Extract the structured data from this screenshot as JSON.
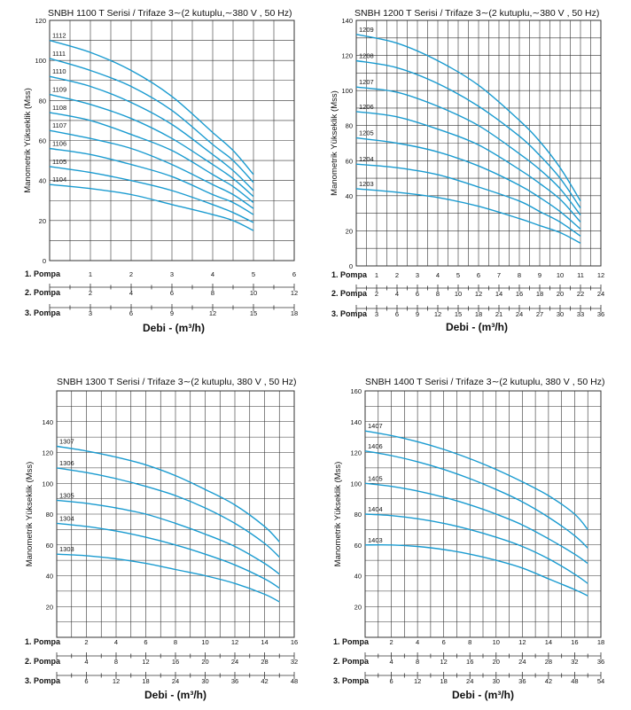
{
  "colors": {
    "curve": "#1a9bd0",
    "grid": "#333333",
    "text": "#111111"
  },
  "chart_data": [
    {
      "type": "line",
      "title": "SNBH 1100 T Serisi / Trifaze 3∼(2 kutuplu,∼380 V , 50 Hz)",
      "ylabel": "Manometrik Yükseklik (Mss)",
      "xlabel": "Debi - (m³/h)",
      "ylim": [
        0,
        120
      ],
      "y_ticks": [
        0,
        20,
        40,
        60,
        80,
        100,
        120
      ],
      "x_scales": [
        {
          "label": "1. Pompa",
          "ticks": [
            "1",
            "2",
            "3",
            "4",
            "5",
            "6"
          ]
        },
        {
          "label": "2. Pompa",
          "ticks": [
            "2",
            "4",
            "6",
            "8",
            "10",
            "12"
          ]
        },
        {
          "label": "3. Pompa",
          "ticks": [
            "3",
            "6",
            "9",
            "12",
            "15",
            "18"
          ]
        }
      ],
      "xlim": [
        0,
        6
      ],
      "grid": true,
      "series": [
        {
          "name": "1112",
          "x": [
            0,
            1,
            2,
            3,
            4,
            4.5,
            5
          ],
          "y": [
            110,
            104,
            95,
            82,
            64,
            55,
            43
          ]
        },
        {
          "name": "1111",
          "x": [
            0,
            1,
            2,
            3,
            4,
            4.5,
            5
          ],
          "y": [
            101,
            95,
            87,
            75,
            58,
            50,
            39
          ]
        },
        {
          "name": "1110",
          "x": [
            0,
            1,
            2,
            3,
            4,
            4.5,
            5
          ],
          "y": [
            92,
            87,
            79,
            68,
            53,
            45,
            35
          ]
        },
        {
          "name": "1109",
          "x": [
            0,
            1,
            2,
            3,
            4,
            4.5,
            5
          ],
          "y": [
            83,
            78,
            71,
            61,
            48,
            41,
            32
          ]
        },
        {
          "name": "1108",
          "x": [
            0,
            1,
            2,
            3,
            4,
            4.5,
            5
          ],
          "y": [
            74,
            70,
            63,
            55,
            43,
            37,
            29
          ]
        },
        {
          "name": "1107",
          "x": [
            0,
            1,
            2,
            3,
            4,
            4.5,
            5
          ],
          "y": [
            65,
            61,
            56,
            48,
            38,
            33,
            26
          ]
        },
        {
          "name": "1106",
          "x": [
            0,
            1,
            2,
            3,
            4,
            4.5,
            5
          ],
          "y": [
            56,
            53,
            48,
            42,
            33,
            29,
            23
          ]
        },
        {
          "name": "1105",
          "x": [
            0,
            1,
            2,
            3,
            4,
            4.5,
            5
          ],
          "y": [
            47,
            44,
            40,
            35,
            28,
            24,
            19
          ]
        },
        {
          "name": "1104",
          "x": [
            0,
            1,
            2,
            3,
            4,
            4.5,
            5
          ],
          "y": [
            38,
            36,
            33,
            28,
            23,
            20,
            15
          ]
        }
      ]
    },
    {
      "type": "line",
      "title": "SNBH 1200 T Serisi / Trifaze 3∼(2 kutuplu,∼380 V , 50 Hz)",
      "ylabel": "Manometrik Yükseklik (Mss)",
      "xlabel": "Debi - (m³/h)",
      "ylim": [
        0,
        140
      ],
      "y_ticks": [
        0,
        20,
        40,
        60,
        80,
        100,
        120,
        140
      ],
      "x_scales": [
        {
          "label": "1. Pompa",
          "ticks": [
            "1",
            "2",
            "3",
            "4",
            "5",
            "6",
            "7",
            "8",
            "9",
            "10",
            "11",
            "12"
          ]
        },
        {
          "label": "2. Pompa",
          "ticks": [
            "2",
            "4",
            "6",
            "8",
            "10",
            "12",
            "14",
            "16",
            "18",
            "20",
            "22",
            "24"
          ]
        },
        {
          "label": "3. Pompa",
          "ticks": [
            "3",
            "6",
            "9",
            "12",
            "15",
            "18",
            "21",
            "24",
            "27",
            "30",
            "33",
            "36"
          ]
        }
      ],
      "xlim": [
        0,
        12
      ],
      "grid": true,
      "series": [
        {
          "name": "1209",
          "x": [
            0,
            2,
            4,
            6,
            8,
            9,
            10,
            11
          ],
          "y": [
            132,
            127,
            117,
            103,
            83,
            71,
            56,
            37
          ]
        },
        {
          "name": "1208",
          "x": [
            0,
            2,
            4,
            6,
            8,
            9,
            10,
            11
          ],
          "y": [
            117,
            113,
            104,
            91,
            74,
            63,
            50,
            33
          ]
        },
        {
          "name": "1207",
          "x": [
            0,
            2,
            4,
            6,
            8,
            9,
            10,
            11
          ],
          "y": [
            102,
            99,
            91,
            80,
            64,
            55,
            44,
            29
          ]
        },
        {
          "name": "1206",
          "x": [
            0,
            2,
            4,
            6,
            8,
            9,
            10,
            11
          ],
          "y": [
            88,
            85,
            78,
            69,
            55,
            47,
            38,
            25
          ]
        },
        {
          "name": "1205",
          "x": [
            0,
            2,
            4,
            6,
            8,
            9,
            10,
            11
          ],
          "y": [
            73,
            70,
            65,
            57,
            46,
            39,
            31,
            21
          ]
        },
        {
          "name": "1204",
          "x": [
            0,
            2,
            4,
            6,
            8,
            9,
            10,
            11
          ],
          "y": [
            58,
            56,
            52,
            45,
            37,
            31,
            25,
            17
          ]
        },
        {
          "name": "1203",
          "x": [
            0,
            2,
            4,
            6,
            8,
            9,
            10,
            11
          ],
          "y": [
            44,
            42,
            39,
            34,
            27,
            23,
            19,
            13
          ]
        }
      ]
    },
    {
      "type": "line",
      "title": "SNBH 1300 T Serisi / Trifaze 3∼(2 kutuplu, 380 V , 50 Hz)",
      "ylabel": "Manometrik Yükseklik (Mss)",
      "xlabel": "Debi - (m³/h)",
      "ylim": [
        0,
        160
      ],
      "y_ticks": [
        20,
        40,
        60,
        80,
        100,
        120,
        140
      ],
      "x_scales": [
        {
          "label": "1. Pompa",
          "ticks": [
            "2",
            "4",
            "6",
            "8",
            "10",
            "12",
            "14",
            "16"
          ]
        },
        {
          "label": "2. Pompa",
          "ticks": [
            "4",
            "8",
            "12",
            "16",
            "20",
            "24",
            "28",
            "32"
          ]
        },
        {
          "label": "3. Pompa",
          "ticks": [
            "6",
            "12",
            "18",
            "24",
            "30",
            "36",
            "42",
            "48"
          ]
        }
      ],
      "xlim": [
        0,
        16
      ],
      "grid": true,
      "series": [
        {
          "name": "1307",
          "x": [
            0,
            2,
            4,
            6,
            8,
            10,
            12,
            14,
            15
          ],
          "y": [
            124,
            121,
            117,
            112,
            105,
            96,
            86,
            72,
            62
          ]
        },
        {
          "name": "1306",
          "x": [
            0,
            2,
            4,
            6,
            8,
            10,
            12,
            14,
            15
          ],
          "y": [
            110,
            107,
            103,
            98,
            92,
            84,
            74,
            61,
            52
          ]
        },
        {
          "name": "1305",
          "x": [
            0,
            2,
            4,
            6,
            8,
            10,
            12,
            14,
            15
          ],
          "y": [
            89,
            87,
            84,
            80,
            74,
            67,
            59,
            48,
            41
          ]
        },
        {
          "name": "1304",
          "x": [
            0,
            2,
            4,
            6,
            8,
            10,
            12,
            14,
            15
          ],
          "y": [
            74,
            72,
            69,
            65,
            60,
            54,
            47,
            38,
            32
          ]
        },
        {
          "name": "1303",
          "x": [
            0,
            2,
            4,
            6,
            8,
            10,
            12,
            14,
            15
          ],
          "y": [
            54,
            53,
            51,
            48,
            44,
            40,
            35,
            28,
            23
          ]
        }
      ]
    },
    {
      "type": "line",
      "title": "SNBH 1400 T Serisi / Trifaze 3∼(2 kutuplu, 380 V , 50 Hz)",
      "ylabel": "Manometrik Yükseklik (Mss)",
      "xlabel": "Debi - (m³/h)",
      "ylim": [
        0,
        160
      ],
      "y_ticks": [
        20,
        40,
        60,
        80,
        100,
        120,
        140,
        160
      ],
      "x_scales": [
        {
          "label": "1. Pompa",
          "ticks": [
            "2",
            "4",
            "6",
            "8",
            "10",
            "12",
            "14",
            "16",
            "18"
          ]
        },
        {
          "label": "2. Pompa",
          "ticks": [
            "4",
            "8",
            "12",
            "16",
            "20",
            "24",
            "28",
            "32",
            "36"
          ]
        },
        {
          "label": "3. Pompa",
          "ticks": [
            "6",
            "12",
            "18",
            "24",
            "30",
            "36",
            "42",
            "48",
            "54"
          ]
        }
      ],
      "xlim": [
        0,
        18
      ],
      "grid": true,
      "series": [
        {
          "name": "1407",
          "x": [
            0,
            2,
            4,
            6,
            8,
            10,
            12,
            14,
            16,
            17
          ],
          "y": [
            134,
            131,
            127,
            122,
            116,
            109,
            101,
            92,
            80,
            70
          ]
        },
        {
          "name": "1406",
          "x": [
            0,
            2,
            4,
            6,
            8,
            10,
            12,
            14,
            16,
            17
          ],
          "y": [
            121,
            118,
            114,
            109,
            103,
            96,
            88,
            78,
            66,
            58
          ]
        },
        {
          "name": "1405",
          "x": [
            0,
            2,
            4,
            6,
            8,
            10,
            12,
            14,
            16,
            17
          ],
          "y": [
            100,
            98,
            95,
            91,
            86,
            80,
            73,
            64,
            54,
            48
          ]
        },
        {
          "name": "1404",
          "x": [
            0,
            2,
            4,
            6,
            8,
            10,
            12,
            14,
            16,
            17
          ],
          "y": [
            80,
            79,
            77,
            74,
            70,
            65,
            59,
            51,
            41,
            35
          ]
        },
        {
          "name": "1403",
          "x": [
            0,
            2,
            4,
            6,
            8,
            10,
            12,
            14,
            16,
            17
          ],
          "y": [
            60,
            60,
            59,
            57,
            54,
            50,
            45,
            38,
            31,
            27
          ]
        }
      ]
    }
  ]
}
